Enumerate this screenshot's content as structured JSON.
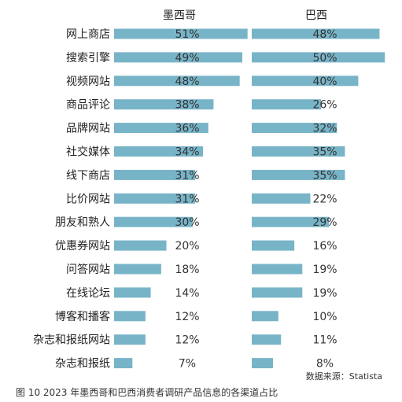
{
  "chart_data": {
    "type": "bar",
    "title": "",
    "categories": [
      "网上商店",
      "搜索引擎",
      "视频网站",
      "商品评论",
      "品牌网站",
      "社交媒体",
      "线下商店",
      "比价网站",
      "朋友和熟人",
      "优惠券网站",
      "问答网站",
      "在线论坛",
      "博客和播客",
      "杂志和报纸网站",
      "杂志和报纸"
    ],
    "series": [
      {
        "name": "墨西哥",
        "values": [
          51,
          49,
          48,
          38,
          36,
          34,
          31,
          31,
          30,
          20,
          18,
          14,
          12,
          12,
          7
        ]
      },
      {
        "name": "巴西",
        "values": [
          48,
          50,
          40,
          26,
          32,
          35,
          35,
          22,
          29,
          16,
          19,
          19,
          10,
          11,
          8
        ]
      }
    ],
    "value_suffix": "%",
    "xlim": [
      0,
      52
    ],
    "bar_color": "#78b4c8",
    "source": "数据来源：Statista",
    "caption": "图 10   2023 年墨西哥和巴西消费者调研产品信息的各渠道占比",
    "grid": false,
    "legend": "none"
  }
}
